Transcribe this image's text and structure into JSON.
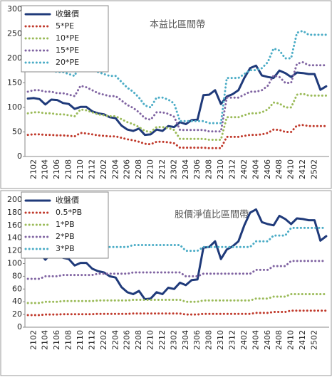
{
  "chart_data": [
    {
      "type": "line",
      "title": "本益比區間帶",
      "categories": [
        null,
        "2102",
        null,
        "2104",
        null,
        "2106",
        null,
        "2108",
        null,
        "2110",
        null,
        "2112",
        null,
        "2202",
        null,
        "2204",
        null,
        "2206",
        null,
        "2208",
        null,
        "2210",
        null,
        "2212",
        null,
        "2302",
        null,
        "2304",
        null,
        "2306",
        null,
        "2308",
        null,
        "2310",
        null,
        "2312",
        null,
        "2402",
        null,
        "2404",
        null,
        "2406",
        null,
        "2408",
        null,
        "2410",
        null,
        "2412",
        null,
        "2502",
        null,
        null
      ],
      "ylim": [
        0,
        300
      ],
      "yticks": [
        0,
        50,
        100,
        150,
        200,
        250,
        300
      ],
      "grid": false,
      "legend": "top-left",
      "series": [
        {
          "name": "收盤價",
          "color": "#1f3a7a",
          "values": [
            118,
            119,
            117,
            106,
            116,
            115,
            109,
            107,
            97,
            101,
            101,
            92,
            88,
            86,
            80,
            78,
            63,
            55,
            52,
            57,
            44,
            45,
            55,
            52,
            62,
            60,
            70,
            66,
            74,
            75,
            125,
            126,
            135,
            107,
            122,
            127,
            135,
            160,
            180,
            185,
            165,
            162,
            160,
            175,
            170,
            162,
            171,
            170,
            168,
            168,
            136,
            143
          ]
        },
        {
          "name": "5*PE",
          "color": "#c0392b",
          "values": [
            44,
            45,
            45,
            44,
            44,
            43,
            43,
            42,
            41,
            48,
            47,
            45,
            43,
            42,
            41,
            41,
            38,
            35,
            33,
            30,
            26,
            25,
            30,
            30,
            29,
            27,
            18,
            18,
            18,
            18,
            18,
            17,
            17,
            17,
            40,
            40,
            40,
            42,
            44,
            44,
            45,
            48,
            55,
            54,
            50,
            50,
            63,
            64,
            62,
            62,
            62,
            62
          ]
        },
        {
          "name": "10*PE",
          "color": "#9bbb59",
          "values": [
            88,
            90,
            90,
            88,
            88,
            86,
            86,
            84,
            82,
            96,
            94,
            90,
            86,
            84,
            82,
            82,
            76,
            70,
            66,
            60,
            52,
            50,
            60,
            60,
            58,
            54,
            36,
            36,
            36,
            36,
            36,
            34,
            34,
            34,
            80,
            80,
            80,
            84,
            88,
            88,
            90,
            96,
            110,
            108,
            100,
            100,
            126,
            128,
            124,
            124,
            124,
            124
          ]
        },
        {
          "name": "15*PE",
          "color": "#8064a2",
          "values": [
            132,
            135,
            135,
            132,
            132,
            129,
            129,
            126,
            123,
            144,
            141,
            135,
            129,
            126,
            123,
            123,
            114,
            105,
            99,
            90,
            78,
            75,
            90,
            90,
            87,
            81,
            54,
            54,
            54,
            54,
            54,
            51,
            51,
            51,
            120,
            120,
            120,
            126,
            132,
            132,
            135,
            144,
            165,
            162,
            150,
            150,
            189,
            192,
            186,
            186,
            186,
            186
          ]
        },
        {
          "name": "20*PE",
          "color": "#4bacc6",
          "values": [
            176,
            180,
            180,
            176,
            176,
            172,
            172,
            168,
            164,
            192,
            188,
            180,
            172,
            168,
            164,
            164,
            152,
            140,
            132,
            120,
            104,
            100,
            120,
            120,
            116,
            108,
            72,
            72,
            72,
            72,
            72,
            68,
            68,
            68,
            160,
            160,
            160,
            168,
            176,
            176,
            180,
            192,
            220,
            216,
            200,
            200,
            252,
            256,
            248,
            248,
            248,
            248
          ]
        }
      ]
    },
    {
      "type": "line",
      "title": "股價淨值比區間帶",
      "categories": [
        null,
        "2102",
        null,
        "2104",
        null,
        "2106",
        null,
        "2108",
        null,
        "2110",
        null,
        "2112",
        null,
        "2202",
        null,
        "2204",
        null,
        "2206",
        null,
        "2208",
        null,
        "2210",
        null,
        "2212",
        null,
        "2302",
        null,
        "2304",
        null,
        "2306",
        null,
        "2308",
        null,
        "2310",
        null,
        "2312",
        null,
        "2402",
        null,
        "2404",
        null,
        "2406",
        null,
        "2408",
        null,
        "2410",
        null,
        "2412",
        null,
        "2502",
        null,
        null
      ],
      "ylim": [
        0,
        200
      ],
      "yticks": [
        0,
        20,
        40,
        60,
        80,
        100,
        120,
        140,
        160,
        180,
        200
      ],
      "grid": false,
      "legend": "top-left",
      "series": [
        {
          "name": "收盤價",
          "color": "#1f3a7a",
          "values": [
            118,
            119,
            117,
            106,
            116,
            115,
            109,
            107,
            97,
            101,
            101,
            92,
            88,
            86,
            80,
            78,
            63,
            55,
            52,
            57,
            44,
            45,
            55,
            52,
            62,
            60,
            70,
            66,
            74,
            75,
            125,
            126,
            135,
            107,
            122,
            127,
            135,
            160,
            180,
            185,
            165,
            162,
            160,
            175,
            170,
            162,
            171,
            170,
            168,
            168,
            136,
            143
          ]
        },
        {
          "name": "0.5*PB",
          "color": "#c0392b",
          "values": [
            19,
            19,
            19,
            20,
            20,
            20,
            20.5,
            20.5,
            20.5,
            20.5,
            20.5,
            20.5,
            21,
            21,
            21,
            21,
            21,
            21,
            21.5,
            21.5,
            21.5,
            21.5,
            21.5,
            21.5,
            21.5,
            21.5,
            21.5,
            20,
            20,
            20,
            21,
            21,
            21,
            21,
            21,
            21,
            21,
            21,
            21,
            22.5,
            22.5,
            22.5,
            24,
            24,
            24,
            26,
            26,
            26,
            26,
            26,
            26,
            26
          ]
        },
        {
          "name": "1*PB",
          "color": "#9bbb59",
          "values": [
            38,
            38,
            38,
            40,
            40,
            40,
            41,
            41,
            41,
            41,
            41,
            41,
            42,
            42,
            42,
            42,
            42,
            42,
            43,
            43,
            43,
            43,
            43,
            43,
            43,
            43,
            43,
            40,
            40,
            40,
            42,
            42,
            42,
            42,
            42,
            42,
            42,
            42,
            42,
            45,
            45,
            45,
            48,
            48,
            48,
            52,
            52,
            52,
            52,
            52,
            52,
            52
          ]
        },
        {
          "name": "2*PB",
          "color": "#8064a2",
          "values": [
            76,
            76,
            76,
            80,
            80,
            80,
            82,
            82,
            82,
            82,
            82,
            82,
            84,
            84,
            84,
            84,
            84,
            84,
            86,
            86,
            86,
            86,
            86,
            86,
            86,
            86,
            86,
            80,
            80,
            80,
            84,
            84,
            84,
            84,
            84,
            84,
            84,
            84,
            84,
            90,
            90,
            90,
            96,
            96,
            96,
            104,
            104,
            104,
            104,
            104,
            104,
            104
          ]
        },
        {
          "name": "3*PB",
          "color": "#4bacc6",
          "values": [
            114,
            114,
            114,
            120,
            120,
            120,
            123,
            123,
            123,
            123,
            123,
            123,
            126,
            126,
            126,
            126,
            126,
            126,
            129,
            129,
            129,
            129,
            129,
            129,
            129,
            129,
            129,
            120,
            120,
            120,
            126,
            126,
            126,
            126,
            126,
            126,
            126,
            126,
            126,
            135,
            135,
            135,
            144,
            144,
            144,
            156,
            156,
            156,
            156,
            156,
            156,
            156
          ]
        }
      ]
    }
  ]
}
